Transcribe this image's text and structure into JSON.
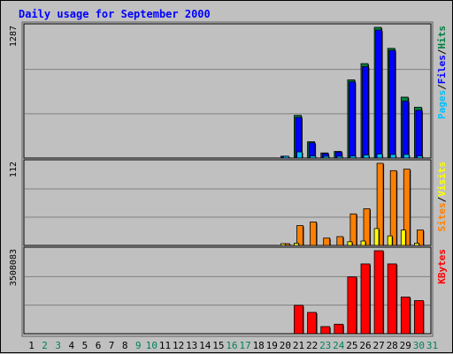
{
  "chart_data": {
    "type": "bar",
    "title": "Daily usage for September 2000",
    "days": [
      "1",
      "2",
      "3",
      "4",
      "5",
      "6",
      "7",
      "8",
      "9",
      "10",
      "11",
      "12",
      "13",
      "14",
      "15",
      "16",
      "17",
      "18",
      "19",
      "20",
      "21",
      "22",
      "23",
      "24",
      "25",
      "26",
      "27",
      "28",
      "29",
      "30",
      "31"
    ],
    "weekend_days": [
      "2",
      "3",
      "9",
      "10",
      "16",
      "17",
      "23",
      "24",
      "30",
      "31"
    ],
    "colors": {
      "title": "#0000FF",
      "hits": "#008040",
      "files": "#0000FF",
      "pages": "#00C0FF",
      "visits": "#FFFF00",
      "sites": "#FF8000",
      "kbytes": "#FF0000",
      "weekend_label": "#00805C",
      "weekday_label": "#000000"
    },
    "panels": [
      {
        "id": "hits-panel",
        "max_label": "1287",
        "max": 1287,
        "legend": [
          {
            "label": "Pages",
            "color": "#00C0FF"
          },
          {
            "label": "Files",
            "color": "#0000FF"
          },
          {
            "label": "Hits",
            "color": "#008040"
          }
        ],
        "series": [
          {
            "name": "Hits",
            "color": "#008040",
            "values": [
              0,
              0,
              0,
              0,
              0,
              0,
              0,
              0,
              0,
              0,
              0,
              0,
              0,
              0,
              0,
              0,
              0,
              0,
              0,
              10,
              420,
              160,
              50,
              65,
              770,
              930,
              1287,
              1080,
              600,
              500,
              0
            ]
          },
          {
            "name": "Files",
            "color": "#0000FF",
            "values": [
              0,
              0,
              0,
              0,
              0,
              0,
              0,
              0,
              0,
              0,
              0,
              0,
              0,
              0,
              0,
              0,
              0,
              0,
              0,
              6,
              400,
              150,
              45,
              60,
              750,
              900,
              1260,
              1060,
              560,
              470,
              0
            ]
          },
          {
            "name": "Pages",
            "color": "#00C0FF",
            "values": [
              0,
              0,
              0,
              0,
              0,
              0,
              0,
              0,
              0,
              0,
              0,
              0,
              0,
              0,
              0,
              0,
              0,
              0,
              0,
              3,
              60,
              20,
              8,
              10,
              20,
              30,
              40,
              35,
              35,
              20,
              0
            ]
          }
        ]
      },
      {
        "id": "visits-panel",
        "max_label": "112",
        "max": 112,
        "legend": [
          {
            "label": "Sites",
            "color": "#FF8000"
          },
          {
            "label": "Visits",
            "color": "#FFFF00"
          }
        ],
        "series": [
          {
            "name": "Sites",
            "color": "#FF8000",
            "values": [
              0,
              0,
              0,
              0,
              0,
              0,
              0,
              0,
              0,
              0,
              0,
              0,
              0,
              0,
              0,
              0,
              0,
              0,
              0,
              1,
              27,
              32,
              10,
              12,
              43,
              50,
              112,
              102,
              104,
              21,
              0
            ]
          },
          {
            "name": "Visits",
            "color": "#FFFF00",
            "values": [
              0,
              0,
              0,
              0,
              0,
              0,
              0,
              0,
              0,
              0,
              0,
              0,
              0,
              0,
              0,
              0,
              0,
              0,
              0,
              1,
              3,
              0,
              0,
              0,
              5,
              6,
              23,
              13,
              21,
              3,
              0
            ]
          }
        ]
      },
      {
        "id": "kbytes-panel",
        "max_label": "3508083",
        "max": 3508083,
        "legend": [
          {
            "label": "KBytes",
            "color": "#FF0000"
          }
        ],
        "series": [
          {
            "name": "KBytes",
            "color": "#FF0000",
            "values": [
              0,
              0,
              0,
              0,
              0,
              0,
              0,
              0,
              0,
              0,
              0,
              0,
              0,
              0,
              0,
              0,
              0,
              0,
              0,
              0,
              1200000,
              900000,
              300000,
              400000,
              2400000,
              2950000,
              3508083,
              2950000,
              1550000,
              1400000,
              0
            ]
          }
        ]
      }
    ]
  }
}
